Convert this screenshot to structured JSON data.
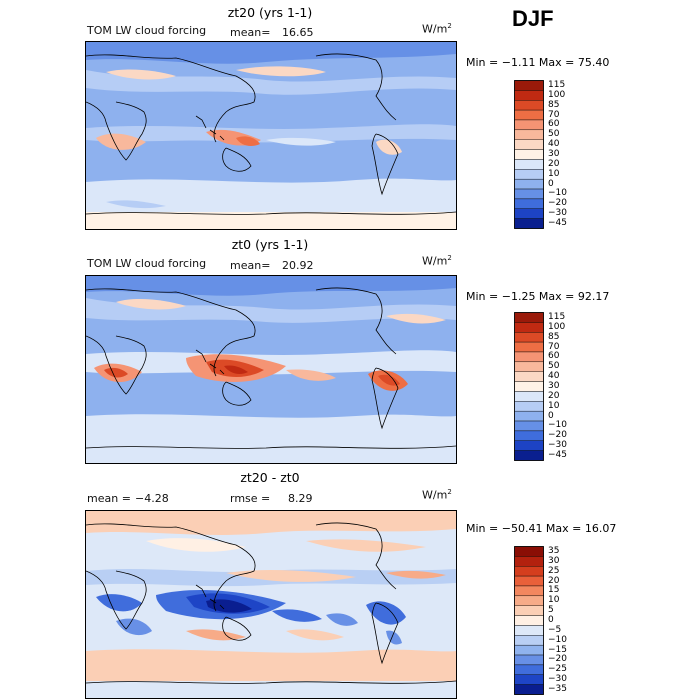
{
  "season": "DJF",
  "panels": [
    {
      "id": "top",
      "title": "zt20 (yrs 1-1)",
      "left_label": "TOM LW cloud forcing",
      "mean_label": "mean=",
      "mean_value": "16.65",
      "units_base": "W/m",
      "units_exp": "2",
      "min_max": "Min =  −1.11  Max =  75.40",
      "levels": [
        "115",
        "100",
        "85",
        "70",
        "60",
        "50",
        "40",
        "30",
        "20",
        "10",
        "0",
        "−10",
        "−20",
        "−30",
        "−45"
      ],
      "colors": [
        "#9a1a0a",
        "#c02a12",
        "#dc4a26",
        "#ee6e44",
        "#f59474",
        "#f8b89c",
        "#fbd8c4",
        "#fff2e6",
        "#dbe7f9",
        "#b6cdf5",
        "#8eb1ee",
        "#6690e6",
        "#3f6ddc",
        "#1d43c4",
        "#0a1f8f"
      ]
    },
    {
      "id": "middle",
      "title": "zt0 (yrs 1-1)",
      "left_label": "TOM LW cloud forcing",
      "mean_label": "mean=",
      "mean_value": "20.92",
      "units_base": "W/m",
      "units_exp": "2",
      "min_max": "Min =  −1.25  Max =  92.17",
      "levels": [
        "115",
        "100",
        "85",
        "70",
        "60",
        "50",
        "40",
        "30",
        "20",
        "10",
        "0",
        "−10",
        "−20",
        "−30",
        "−45"
      ],
      "colors": [
        "#9a1a0a",
        "#c02a12",
        "#dc4a26",
        "#ee6e44",
        "#f59474",
        "#f8b89c",
        "#fbd8c4",
        "#fff2e6",
        "#dbe7f9",
        "#b6cdf5",
        "#8eb1ee",
        "#6690e6",
        "#3f6ddc",
        "#1d43c4",
        "#0a1f8f"
      ]
    },
    {
      "id": "bottom",
      "title": "zt20 - zt0",
      "mean_label": "mean =",
      "mean_value": "−4.28",
      "rmse_label": "rmse =",
      "rmse_value": "8.29",
      "units_base": "W/m",
      "units_exp": "2",
      "min_max": "Min = −50.41  Max =  16.07",
      "levels": [
        "35",
        "30",
        "25",
        "20",
        "15",
        "10",
        "5",
        "0",
        "−5",
        "−10",
        "−15",
        "−20",
        "−25",
        "−30",
        "−35"
      ],
      "colors": [
        "#8a0e05",
        "#b3210e",
        "#d43e1e",
        "#e9603a",
        "#f3875f",
        "#f7ab88",
        "#fbcfb5",
        "#fff0e4",
        "#dde8f8",
        "#b9cff4",
        "#90b3ee",
        "#6890e6",
        "#406ddc",
        "#1e45c6",
        "#0a1e90"
      ]
    }
  ],
  "chart_data": [
    {
      "type": "heatmap",
      "title": "zt20 (yrs 1-1)",
      "variable": "TOM LW cloud forcing",
      "units": "W/m2",
      "mean": 16.65,
      "min": -1.11,
      "max": 75.4,
      "contour_levels": [
        115,
        100,
        85,
        70,
        60,
        50,
        40,
        30,
        20,
        10,
        0,
        -10,
        -20,
        -30,
        -45
      ]
    },
    {
      "type": "heatmap",
      "title": "zt0 (yrs 1-1)",
      "variable": "TOM LW cloud forcing",
      "units": "W/m2",
      "mean": 20.92,
      "min": -1.25,
      "max": 92.17,
      "contour_levels": [
        115,
        100,
        85,
        70,
        60,
        50,
        40,
        30,
        20,
        10,
        0,
        -10,
        -20,
        -30,
        -45
      ]
    },
    {
      "type": "heatmap",
      "title": "zt20 - zt0",
      "units": "W/m2",
      "mean": -4.28,
      "rmse": 8.29,
      "min": -50.41,
      "max": 16.07,
      "contour_levels": [
        35,
        30,
        25,
        20,
        15,
        10,
        5,
        0,
        -5,
        -10,
        -15,
        -20,
        -25,
        -30,
        -35
      ]
    }
  ]
}
